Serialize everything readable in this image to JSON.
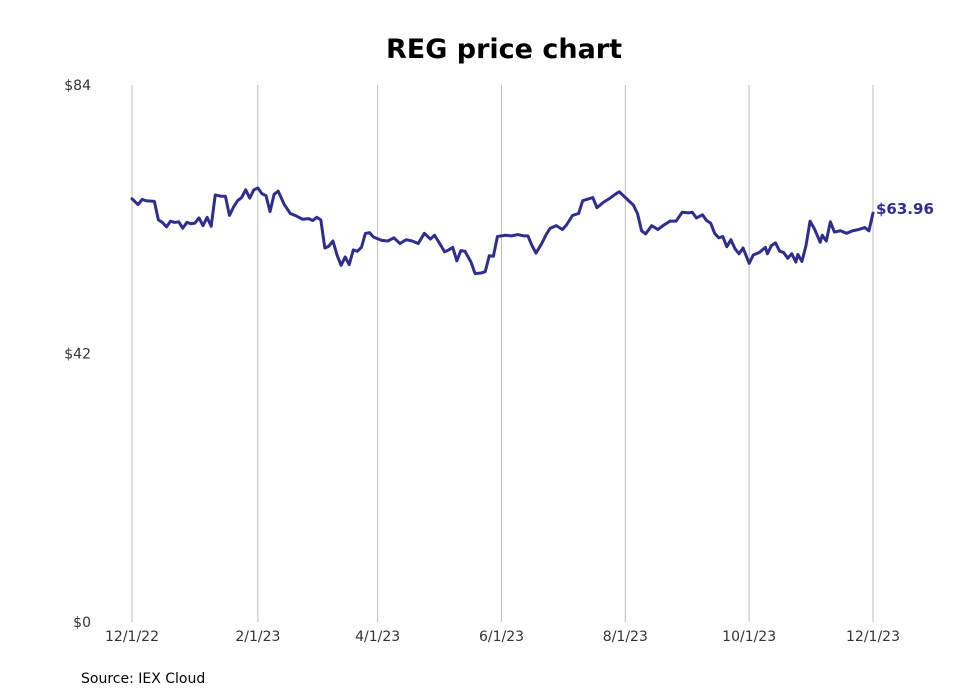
{
  "chart_data": {
    "type": "line",
    "title": "REG price chart",
    "xlabel": "",
    "ylabel": "",
    "x_tick_labels": [
      "12/1/22",
      "2/1/23",
      "4/1/23",
      "6/1/23",
      "8/1/23",
      "10/1/23",
      "12/1/23"
    ],
    "y_tick_labels": [
      "$0",
      "$42",
      "$84"
    ],
    "ylim": [
      0,
      84
    ],
    "xlim": [
      "2022-12-01",
      "2023-12-01"
    ],
    "grid": "vertical",
    "end_label": "$63.96",
    "series": [
      {
        "color": "#2e2e8f",
        "points": [
          [
            "2022-12-01",
            66.2
          ],
          [
            "2022-12-04",
            65.3
          ],
          [
            "2022-12-06",
            66.1
          ],
          [
            "2022-12-08",
            65.9
          ],
          [
            "2022-12-12",
            65.8
          ],
          [
            "2022-12-14",
            62.9
          ],
          [
            "2022-12-16",
            62.5
          ],
          [
            "2022-12-18",
            61.8
          ],
          [
            "2022-12-20",
            62.7
          ],
          [
            "2022-12-22",
            62.5
          ],
          [
            "2022-12-24",
            62.6
          ],
          [
            "2022-12-26",
            61.6
          ],
          [
            "2022-12-28",
            62.5
          ],
          [
            "2022-12-30",
            62.3
          ],
          [
            "2023-01-01",
            62.4
          ],
          [
            "2023-01-03",
            63.2
          ],
          [
            "2023-01-05",
            62.0
          ],
          [
            "2023-01-07",
            63.3
          ],
          [
            "2023-01-09",
            61.9
          ],
          [
            "2023-01-11",
            66.8
          ],
          [
            "2023-01-14",
            66.6
          ],
          [
            "2023-01-16",
            66.6
          ],
          [
            "2023-01-18",
            63.6
          ],
          [
            "2023-01-20",
            64.9
          ],
          [
            "2023-01-22",
            65.9
          ],
          [
            "2023-01-24",
            66.4
          ],
          [
            "2023-01-26",
            67.6
          ],
          [
            "2023-01-28",
            66.3
          ],
          [
            "2023-01-30",
            67.6
          ],
          [
            "2023-02-01",
            67.9
          ],
          [
            "2023-02-03",
            67.0
          ],
          [
            "2023-02-05",
            66.7
          ],
          [
            "2023-02-07",
            64.2
          ],
          [
            "2023-02-09",
            66.9
          ],
          [
            "2023-02-11",
            67.4
          ],
          [
            "2023-02-14",
            65.3
          ],
          [
            "2023-02-17",
            63.9
          ],
          [
            "2023-02-20",
            63.5
          ],
          [
            "2023-02-23",
            63.0
          ],
          [
            "2023-02-26",
            63.1
          ],
          [
            "2023-02-28",
            62.8
          ],
          [
            "2023-03-02",
            63.3
          ],
          [
            "2023-03-04",
            62.9
          ],
          [
            "2023-03-06",
            58.5
          ],
          [
            "2023-03-08",
            58.8
          ],
          [
            "2023-03-10",
            59.6
          ],
          [
            "2023-03-12",
            57.4
          ],
          [
            "2023-03-14",
            55.8
          ],
          [
            "2023-03-16",
            57.1
          ],
          [
            "2023-03-18",
            55.9
          ],
          [
            "2023-03-20",
            58.2
          ],
          [
            "2023-03-22",
            58.0
          ],
          [
            "2023-03-24",
            58.6
          ],
          [
            "2023-03-26",
            60.8
          ],
          [
            "2023-03-28",
            60.9
          ],
          [
            "2023-03-30",
            60.2
          ],
          [
            "2023-04-03",
            59.7
          ],
          [
            "2023-04-06",
            59.6
          ],
          [
            "2023-04-09",
            60.1
          ],
          [
            "2023-04-12",
            59.2
          ],
          [
            "2023-04-15",
            59.8
          ],
          [
            "2023-04-18",
            59.6
          ],
          [
            "2023-04-21",
            59.2
          ],
          [
            "2023-04-24",
            60.8
          ],
          [
            "2023-04-27",
            59.9
          ],
          [
            "2023-04-29",
            60.5
          ],
          [
            "2023-05-01",
            59.5
          ],
          [
            "2023-05-04",
            57.9
          ],
          [
            "2023-05-06",
            58.2
          ],
          [
            "2023-05-08",
            58.6
          ],
          [
            "2023-05-10",
            56.5
          ],
          [
            "2023-05-12",
            58.1
          ],
          [
            "2023-05-14",
            58.0
          ],
          [
            "2023-05-17",
            56.3
          ],
          [
            "2023-05-19",
            54.5
          ],
          [
            "2023-05-22",
            54.6
          ],
          [
            "2023-05-24",
            54.8
          ],
          [
            "2023-05-26",
            57.3
          ],
          [
            "2023-05-28",
            57.2
          ],
          [
            "2023-05-30",
            60.3
          ],
          [
            "2023-06-03",
            60.5
          ],
          [
            "2023-06-06",
            60.4
          ],
          [
            "2023-06-09",
            60.6
          ],
          [
            "2023-06-12",
            60.4
          ],
          [
            "2023-06-14",
            60.4
          ],
          [
            "2023-06-16",
            58.9
          ],
          [
            "2023-06-18",
            57.7
          ],
          [
            "2023-06-21",
            59.3
          ],
          [
            "2023-06-23",
            60.6
          ],
          [
            "2023-06-25",
            61.6
          ],
          [
            "2023-06-28",
            62.0
          ],
          [
            "2023-07-01",
            61.4
          ],
          [
            "2023-07-03",
            62.1
          ],
          [
            "2023-07-06",
            63.6
          ],
          [
            "2023-07-09",
            63.9
          ],
          [
            "2023-07-11",
            65.9
          ],
          [
            "2023-07-14",
            66.2
          ],
          [
            "2023-07-16",
            66.4
          ],
          [
            "2023-07-18",
            64.8
          ],
          [
            "2023-07-21",
            65.6
          ],
          [
            "2023-07-24",
            66.2
          ],
          [
            "2023-07-27",
            66.9
          ],
          [
            "2023-07-29",
            67.3
          ],
          [
            "2023-08-01",
            66.4
          ],
          [
            "2023-08-03",
            65.8
          ],
          [
            "2023-08-05",
            65.2
          ],
          [
            "2023-08-07",
            63.9
          ],
          [
            "2023-08-09",
            61.2
          ],
          [
            "2023-08-11",
            60.7
          ],
          [
            "2023-08-14",
            62.0
          ],
          [
            "2023-08-17",
            61.4
          ],
          [
            "2023-08-20",
            62.1
          ],
          [
            "2023-08-23",
            62.7
          ],
          [
            "2023-08-26",
            62.7
          ],
          [
            "2023-08-29",
            64.1
          ],
          [
            "2023-09-01",
            64.0
          ],
          [
            "2023-09-03",
            64.1
          ],
          [
            "2023-09-05",
            63.2
          ],
          [
            "2023-09-08",
            63.7
          ],
          [
            "2023-09-10",
            62.8
          ],
          [
            "2023-09-12",
            62.4
          ],
          [
            "2023-09-14",
            60.8
          ],
          [
            "2023-09-16",
            60.1
          ],
          [
            "2023-09-18",
            60.3
          ],
          [
            "2023-09-20",
            58.7
          ],
          [
            "2023-09-22",
            59.8
          ],
          [
            "2023-09-24",
            58.4
          ],
          [
            "2023-09-26",
            57.6
          ],
          [
            "2023-09-28",
            58.5
          ],
          [
            "2023-10-01",
            56.1
          ],
          [
            "2023-10-03",
            57.4
          ],
          [
            "2023-10-06",
            57.8
          ],
          [
            "2023-10-09",
            58.6
          ],
          [
            "2023-10-10",
            57.6
          ],
          [
            "2023-10-12",
            58.9
          ],
          [
            "2023-10-14",
            59.3
          ],
          [
            "2023-10-16",
            58.0
          ],
          [
            "2023-10-18",
            57.8
          ],
          [
            "2023-10-20",
            56.9
          ],
          [
            "2023-10-22",
            57.6
          ],
          [
            "2023-10-24",
            56.3
          ],
          [
            "2023-10-25",
            57.5
          ],
          [
            "2023-10-27",
            56.4
          ],
          [
            "2023-10-29",
            58.9
          ],
          [
            "2023-10-31",
            62.7
          ],
          [
            "2023-11-02",
            61.6
          ],
          [
            "2023-11-05",
            59.4
          ],
          [
            "2023-11-06",
            60.5
          ],
          [
            "2023-11-08",
            59.6
          ],
          [
            "2023-11-10",
            62.6
          ],
          [
            "2023-11-12",
            61.0
          ],
          [
            "2023-11-15",
            61.2
          ],
          [
            "2023-11-18",
            60.8
          ],
          [
            "2023-11-21",
            61.2
          ],
          [
            "2023-11-24",
            61.4
          ],
          [
            "2023-11-27",
            61.7
          ],
          [
            "2023-11-29",
            61.2
          ],
          [
            "2023-12-01",
            63.96
          ]
        ]
      }
    ]
  },
  "footer": {
    "source": "Source: IEX Cloud"
  }
}
